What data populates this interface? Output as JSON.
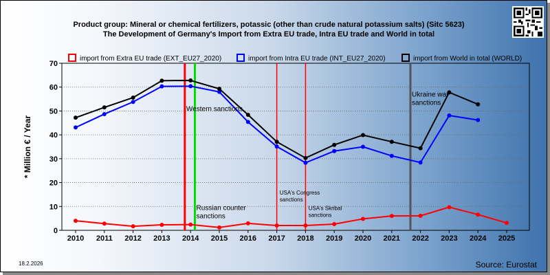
{
  "header": {
    "title_line1": "Product group: Mineral or chemical fertilizers, potassic (other than crude natural potassium salts) (Sitc 5623)",
    "title_line2": "The Development of Germany's Import from Extra EU trade, Intra EU trade and World in total"
  },
  "footer": {
    "date": "18.2.2026",
    "source": "Source: Eurostat"
  },
  "qr": "qr-code-icon",
  "colors": {
    "extra": "#ff0000",
    "intra": "#0000ff",
    "world": "#000000",
    "green": "#00dd00",
    "grey": "#555555"
  },
  "chart_data": {
    "type": "line",
    "ylabel": "* Million € / Year",
    "ylim": [
      0,
      70
    ],
    "yticks": [
      0,
      10,
      20,
      30,
      40,
      50,
      60,
      70
    ],
    "x": [
      "2010",
      "2011",
      "2012",
      "2013",
      "2014",
      "2015",
      "2016",
      "2017",
      "2018",
      "2019",
      "2020",
      "2021",
      "2022",
      "2023",
      "2024",
      "2025"
    ],
    "grid": "horizontal",
    "legend_position": "top",
    "series": [
      {
        "key": "extra",
        "name": "import from Extra EU trade (EXT_EU27_2020)",
        "values": [
          4.0,
          2.8,
          1.7,
          2.3,
          2.4,
          1.2,
          2.9,
          2.0,
          2.0,
          2.6,
          4.8,
          6.0,
          6.1,
          9.7,
          6.6,
          3.1
        ]
      },
      {
        "key": "intra",
        "name": "import from Intra EU trade (INT_EU27_2020)",
        "values": [
          43.1,
          48.7,
          53.8,
          60.3,
          60.4,
          58.0,
          45.4,
          35.1,
          28.3,
          33.2,
          35.0,
          31.2,
          28.4,
          48.1,
          46.2,
          null
        ]
      },
      {
        "key": "world",
        "name": "import from World in total (WORLD)",
        "values": [
          47.2,
          51.5,
          55.6,
          62.7,
          62.8,
          59.3,
          48.4,
          37.1,
          30.3,
          35.8,
          39.9,
          37.1,
          34.4,
          57.8,
          52.8,
          null
        ]
      }
    ],
    "events": [
      {
        "pos": 2013.8,
        "color": "red",
        "label": "Western sanctions",
        "label_x": 2013.85,
        "label_y": 50,
        "size": 10
      },
      {
        "pos": 2014.15,
        "color": "green",
        "label": "Russian counter sanctions",
        "label_x": 2014.2,
        "label_y": 8.5,
        "size": 10
      },
      {
        "pos": 2017.0,
        "color": "red",
        "label": "USA's Congress sanctions",
        "label_x": 2017.1,
        "label_y": 15,
        "size": 8
      },
      {
        "pos": 2018.0,
        "color": "red",
        "label": "USA's Skribal sanctions",
        "label_x": 2018.1,
        "label_y": 8.5,
        "size": 8
      },
      {
        "pos": 2021.65,
        "color": "grey",
        "label": "Ukraine war sanctions",
        "label_x": 2021.7,
        "label_y": 56,
        "size": 10
      }
    ]
  }
}
